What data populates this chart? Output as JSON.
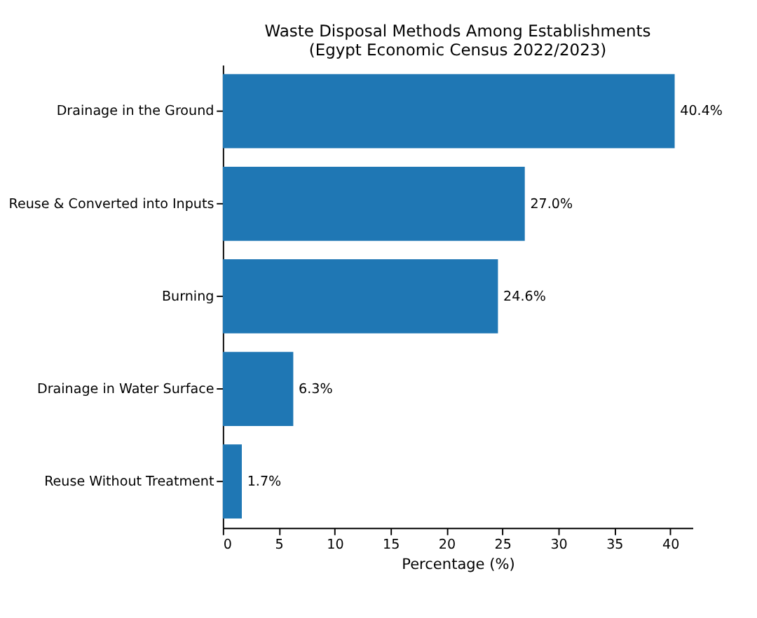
{
  "chart_data": {
    "type": "bar",
    "orientation": "horizontal",
    "title": "Waste Disposal Methods Among Establishments\n(Egypt Economic Census 2022/2023)",
    "xlabel": "Percentage (%)",
    "categories": [
      "Drainage in the Ground",
      "Reuse & Converted into Inputs",
      "Burning",
      "Drainage in Water Surface",
      "Reuse Without Treatment"
    ],
    "values": [
      40.4,
      27.0,
      24.6,
      6.3,
      1.7
    ],
    "value_labels": [
      "40.4%",
      "27.0%",
      "24.6%",
      "6.3%",
      "1.7%"
    ],
    "color": "#1f77b4",
    "xlim": [
      0,
      42
    ],
    "xticks": [
      0,
      5,
      10,
      15,
      20,
      25,
      30,
      35,
      40
    ],
    "grid": false
  }
}
